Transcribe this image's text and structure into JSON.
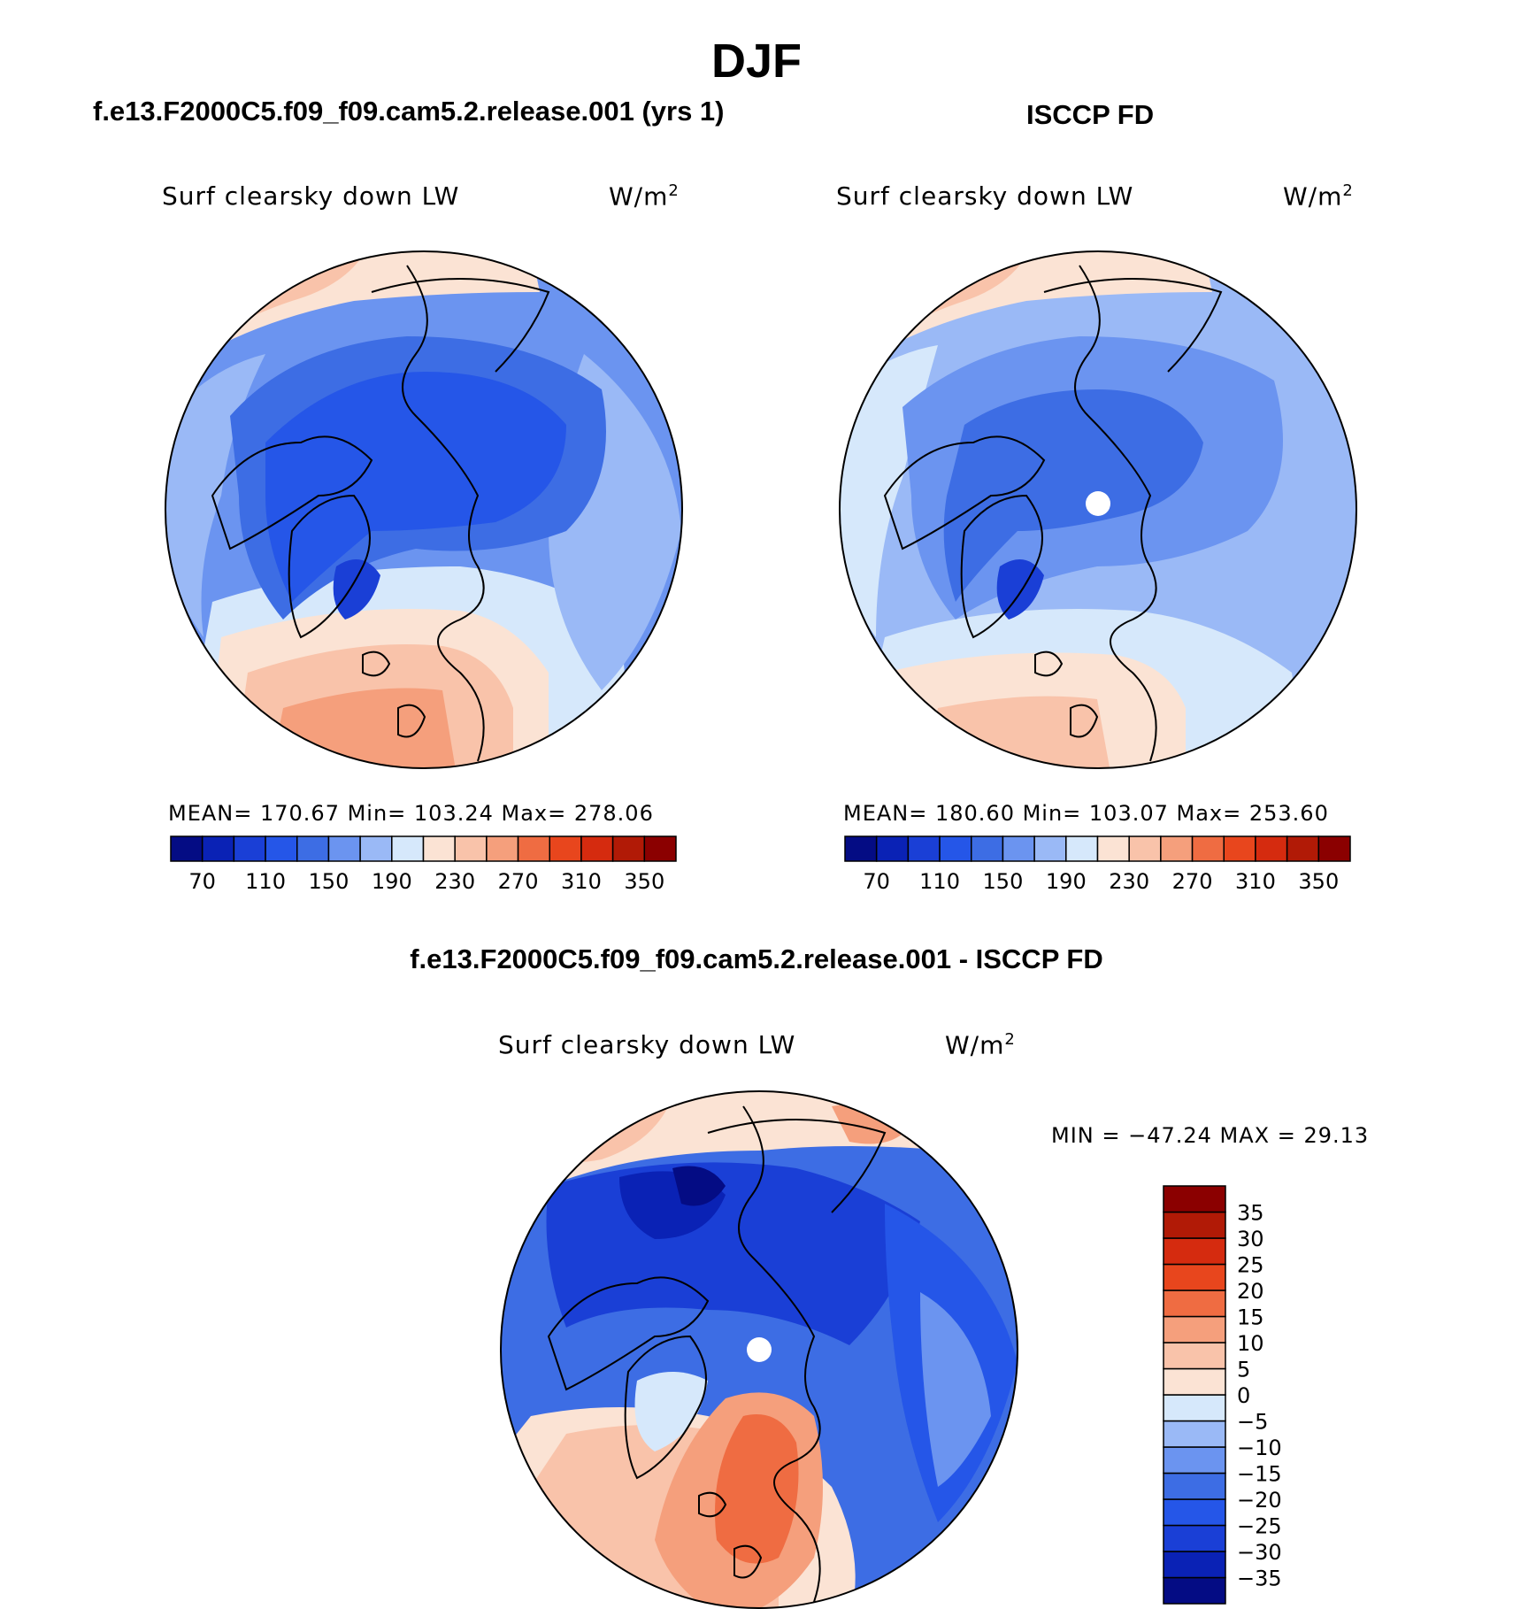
{
  "figure": {
    "title": "DJF",
    "left_panel_title": "f.e13.F2000C5.f09_f09.cam5.2.release.001 (yrs 1)",
    "right_panel_title": "ISCCP FD",
    "bottom_panel_title": "f.e13.F2000C5.f09_f09.cam5.2.release.001 - ISCCP FD"
  },
  "panels": [
    {
      "variable": "Surf clearsky down LW",
      "units": "W/m",
      "units_sup": "2",
      "stats": "MEAN= 170.67   Min= 103.24   Max= 278.06"
    },
    {
      "variable": "Surf clearsky down LW",
      "units": "W/m",
      "units_sup": "2",
      "stats": "MEAN= 180.60   Min= 103.07   Max= 253.60"
    },
    {
      "variable": "Surf clearsky down LW",
      "units": "W/m",
      "units_sup": "2",
      "stats": "MIN = −47.24 MAX =  29.13"
    }
  ],
  "chart_data": [
    {
      "type": "heatmap",
      "projection": "north-polar-stereographic",
      "title": "f.e13.F2000C5.f09_f09.cam5.2.release.001 (yrs 1)",
      "variable": "Surf clearsky down LW",
      "units": "W/m^2",
      "mean": 170.67,
      "min": 103.24,
      "max": 278.06,
      "levels": [
        70,
        90,
        110,
        130,
        150,
        170,
        190,
        210,
        230,
        250,
        270,
        290,
        310,
        330,
        350
      ],
      "tick_labels": [
        "70",
        "110",
        "150",
        "190",
        "230",
        "270",
        "310",
        "350"
      ],
      "colors": [
        "#040c84",
        "#0a22b5",
        "#1a3fd6",
        "#2556e8",
        "#3d6de4",
        "#6b94f0",
        "#9ab9f6",
        "#d6e8fb",
        "#fbe3d4",
        "#f9c3aa",
        "#f59f7c",
        "#ef6c42",
        "#e8461d",
        "#d52b0f",
        "#b11a06",
        "#8b0000"
      ]
    },
    {
      "type": "heatmap",
      "projection": "north-polar-stereographic",
      "title": "ISCCP FD",
      "variable": "Surf clearsky down LW",
      "units": "W/m^2",
      "mean": 180.6,
      "min": 103.07,
      "max": 253.6,
      "levels": [
        70,
        90,
        110,
        130,
        150,
        170,
        190,
        210,
        230,
        250,
        270,
        290,
        310,
        330,
        350
      ],
      "tick_labels": [
        "70",
        "110",
        "150",
        "190",
        "230",
        "270",
        "310",
        "350"
      ],
      "colors": [
        "#040c84",
        "#0a22b5",
        "#1a3fd6",
        "#2556e8",
        "#3d6de4",
        "#6b94f0",
        "#9ab9f6",
        "#d6e8fb",
        "#fbe3d4",
        "#f9c3aa",
        "#f59f7c",
        "#ef6c42",
        "#e8461d",
        "#d52b0f",
        "#b11a06",
        "#8b0000"
      ]
    },
    {
      "type": "heatmap",
      "projection": "north-polar-stereographic",
      "title": "f.e13.F2000C5.f09_f09.cam5.2.release.001 - ISCCP FD",
      "variable": "Surf clearsky down LW",
      "units": "W/m^2",
      "min": -47.24,
      "max": 29.13,
      "levels": [
        -35,
        -30,
        -25,
        -20,
        -15,
        -10,
        -5,
        0,
        5,
        10,
        15,
        20,
        25,
        30,
        35
      ],
      "tick_labels": [
        "−35",
        "−30",
        "−25",
        "−20",
        "−15",
        "−10",
        "−5",
        "0",
        "5",
        "10",
        "15",
        "20",
        "25",
        "30",
        "35"
      ],
      "colors": [
        "#040c84",
        "#0a22b5",
        "#1a3fd6",
        "#2556e8",
        "#3d6de4",
        "#6b94f0",
        "#9ab9f6",
        "#d6e8fb",
        "#fbe3d4",
        "#f9c3aa",
        "#f59f7c",
        "#ef6c42",
        "#e8461d",
        "#d52b0f",
        "#b11a06",
        "#8b0000"
      ]
    }
  ]
}
